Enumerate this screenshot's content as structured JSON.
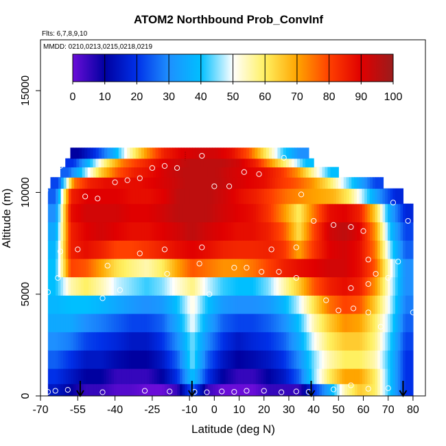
{
  "chart_data": {
    "type": "heatmap",
    "title": "ATOM2 Northbound Prob_ConvInf",
    "subtitle_flights": "Flts: 6,7,8,9,10",
    "subtitle_dates": "MMDD: 0210,0213,0215,0218,0219",
    "xlabel": "Latitude (deg N)",
    "ylabel": "Altitude (m)",
    "xlim": [
      -70,
      85
    ],
    "ylim": [
      0,
      17500
    ],
    "x_ticks": [
      -70,
      -55,
      -40,
      -25,
      -10,
      0,
      10,
      20,
      30,
      40,
      50,
      60,
      70,
      80
    ],
    "x_tick_labels": [
      "-70",
      "-55",
      "-40",
      "-25",
      "-10",
      "0",
      "10",
      "20",
      "30",
      "40",
      "50",
      "60",
      "70",
      "80"
    ],
    "y_ticks": [
      0,
      5000,
      10000,
      15000
    ],
    "y_tick_labels": [
      "0",
      "5000",
      "10000",
      "15000"
    ],
    "colorbar": {
      "range": [
        0,
        100
      ],
      "ticks": [
        0,
        10,
        20,
        30,
        40,
        50,
        60,
        70,
        80,
        90,
        100
      ],
      "tick_labels": [
        "0",
        "10",
        "20",
        "30",
        "40",
        "50",
        "60",
        "70",
        "80",
        "90",
        "100"
      ],
      "placement": "top inside plot",
      "colors": [
        "#6a0dd8",
        "#0000a0",
        "#0030e8",
        "#1e90ff",
        "#00bfff",
        "#ffffff",
        "#fff060",
        "#ffa500",
        "#ff4000",
        "#e00000",
        "#9a1c1c"
      ]
    },
    "layers": [
      {
        "alt": 300,
        "lat_min": -67,
        "lat_max": 80,
        "values": [
          15,
          10,
          5,
          5,
          2,
          2,
          0,
          0,
          5,
          25,
          5,
          0,
          0,
          0,
          5,
          5,
          5,
          20,
          35,
          55,
          65,
          60,
          40,
          20
        ]
      },
      {
        "alt": 900,
        "lat_min": -67,
        "lat_max": 80,
        "values": [
          20,
          15,
          10,
          10,
          5,
          5,
          5,
          10,
          20,
          40,
          20,
          10,
          5,
          5,
          10,
          15,
          25,
          45,
          60,
          70,
          70,
          60,
          40,
          20
        ]
      },
      {
        "alt": 1800,
        "lat_min": -67,
        "lat_max": 80,
        "values": [
          25,
          20,
          15,
          15,
          12,
          10,
          10,
          15,
          25,
          45,
          25,
          15,
          10,
          12,
          15,
          20,
          30,
          45,
          55,
          60,
          60,
          55,
          40,
          20
        ]
      },
      {
        "alt": 2700,
        "lat_min": -67,
        "lat_max": 80,
        "values": [
          30,
          28,
          22,
          20,
          18,
          15,
          15,
          20,
          30,
          45,
          30,
          20,
          15,
          18,
          20,
          25,
          35,
          50,
          60,
          65,
          65,
          58,
          42,
          22
        ]
      },
      {
        "alt": 3600,
        "lat_min": -67,
        "lat_max": 80,
        "values": [
          35,
          35,
          30,
          28,
          25,
          22,
          22,
          25,
          35,
          50,
          35,
          25,
          22,
          22,
          25,
          30,
          40,
          55,
          65,
          72,
          70,
          60,
          45,
          25
        ]
      },
      {
        "alt": 4500,
        "lat_min": -67,
        "lat_max": 80,
        "values": [
          38,
          40,
          40,
          38,
          35,
          32,
          30,
          32,
          40,
          52,
          40,
          32,
          30,
          30,
          32,
          38,
          48,
          62,
          75,
          80,
          78,
          65,
          48,
          28
        ]
      },
      {
        "alt": 5400,
        "lat_min": -67,
        "lat_max": 80,
        "values": [
          40,
          55,
          60,
          55,
          48,
          45,
          42,
          45,
          52,
          58,
          48,
          42,
          40,
          40,
          45,
          55,
          65,
          78,
          85,
          88,
          85,
          72,
          50,
          30
        ]
      },
      {
        "alt": 6300,
        "lat_min": -67,
        "lat_max": 80,
        "values": [
          40,
          80,
          78,
          70,
          62,
          58,
          55,
          60,
          70,
          78,
          75,
          72,
          72,
          75,
          80,
          85,
          88,
          90,
          92,
          92,
          88,
          78,
          52,
          30
        ]
      },
      {
        "alt": 7200,
        "lat_min": -67,
        "lat_max": 80,
        "values": [
          38,
          85,
          88,
          85,
          80,
          80,
          82,
          85,
          88,
          90,
          88,
          85,
          84,
          84,
          85,
          82,
          70,
          82,
          90,
          92,
          88,
          75,
          45,
          25
        ]
      },
      {
        "alt": 8100,
        "lat_min": -67,
        "lat_max": 80,
        "values": [
          35,
          85,
          90,
          92,
          90,
          88,
          88,
          90,
          92,
          95,
          92,
          90,
          88,
          88,
          85,
          78,
          62,
          80,
          92,
          95,
          90,
          72,
          40,
          22
        ]
      },
      {
        "alt": 9000,
        "lat_min": -67,
        "lat_max": 80,
        "values": [
          30,
          88,
          92,
          92,
          92,
          90,
          90,
          92,
          95,
          95,
          95,
          92,
          90,
          88,
          82,
          72,
          60,
          75,
          88,
          90,
          85,
          65,
          35,
          18
        ]
      },
      {
        "alt": 9900,
        "lat_min": -67,
        "lat_max": 76,
        "values": [
          25,
          85,
          90,
          90,
          90,
          88,
          88,
          90,
          95,
          95,
          95,
          92,
          88,
          85,
          80,
          75,
          72,
          70,
          68,
          60,
          45,
          30,
          18
        ]
      },
      {
        "alt": 10500,
        "lat_min": -66,
        "lat_max": 68,
        "values": [
          22,
          75,
          85,
          88,
          88,
          88,
          90,
          92,
          95,
          95,
          95,
          92,
          90,
          88,
          82,
          78,
          72,
          62,
          48,
          35,
          22
        ]
      },
      {
        "alt": 11000,
        "lat_min": -62,
        "lat_max": 50,
        "values": [
          25,
          45,
          65,
          78,
          85,
          88,
          92,
          95,
          95,
          95,
          92,
          90,
          88,
          82,
          72,
          55,
          40
        ]
      },
      {
        "alt": 11500,
        "lat_min": -60,
        "lat_max": 40,
        "values": [
          20,
          40,
          60,
          75,
          82,
          88,
          92,
          95,
          95,
          95,
          92,
          85,
          70,
          55,
          40
        ]
      },
      {
        "alt": 11850,
        "lat_min": -58,
        "lat_max": 38,
        "values": [
          10,
          20,
          35,
          55,
          72,
          85,
          90,
          92,
          92,
          88,
          78,
          60,
          42,
          30
        ]
      }
    ],
    "sample_points": [
      [
        -67,
        200
      ],
      [
        -64,
        250
      ],
      [
        -59,
        300
      ],
      [
        -45,
        180
      ],
      [
        -28,
        250
      ],
      [
        -18,
        220
      ],
      [
        -8,
        200
      ],
      [
        -3,
        180
      ],
      [
        3,
        220
      ],
      [
        8,
        200
      ],
      [
        13,
        250
      ],
      [
        20,
        250
      ],
      [
        27,
        180
      ],
      [
        33,
        220
      ],
      [
        38,
        200
      ],
      [
        48,
        320
      ],
      [
        55,
        520
      ],
      [
        62,
        350
      ],
      [
        70,
        380
      ],
      [
        -67,
        5100
      ],
      [
        -63,
        5800
      ],
      [
        -45,
        4800
      ],
      [
        -38,
        5200
      ],
      [
        -30,
        7000
      ],
      [
        -20,
        7200
      ],
      [
        -6,
        6500
      ],
      [
        -2,
        5000
      ],
      [
        8,
        6300
      ],
      [
        13,
        6300
      ],
      [
        19,
        6100
      ],
      [
        26,
        6100
      ],
      [
        33,
        5800
      ],
      [
        45,
        4700
      ],
      [
        50,
        4200
      ],
      [
        56,
        4300
      ],
      [
        62,
        4100
      ],
      [
        67,
        3400
      ],
      [
        70,
        5800
      ],
      [
        74,
        6600
      ],
      [
        78,
        8600
      ],
      [
        80,
        4100
      ],
      [
        -62,
        7100
      ],
      [
        -55,
        7200
      ],
      [
        -43,
        6400
      ],
      [
        -19,
        6000
      ],
      [
        -5,
        7300
      ],
      [
        23,
        7200
      ],
      [
        33,
        7300
      ],
      [
        40,
        8600
      ],
      [
        48,
        8400
      ],
      [
        55,
        8300
      ],
      [
        60,
        8100
      ],
      [
        62,
        6700
      ],
      [
        72,
        9500
      ],
      [
        62,
        5500
      ],
      [
        65,
        6000
      ],
      [
        55,
        5300
      ],
      [
        -68,
        10100
      ],
      [
        -62,
        11300
      ],
      [
        -52,
        9800
      ],
      [
        -47,
        9700
      ],
      [
        -40,
        10500
      ],
      [
        -35,
        10600
      ],
      [
        -30,
        10700
      ],
      [
        -25,
        11200
      ],
      [
        -20,
        11300
      ],
      [
        -15,
        11200
      ],
      [
        -5,
        11800
      ],
      [
        0,
        10300
      ],
      [
        6,
        10300
      ],
      [
        12,
        11000
      ],
      [
        18,
        10900
      ],
      [
        28,
        11700
      ],
      [
        35,
        9900
      ],
      [
        41,
        11800
      ]
    ],
    "arrows_lat": [
      -54,
      -9,
      39,
      76
    ]
  }
}
